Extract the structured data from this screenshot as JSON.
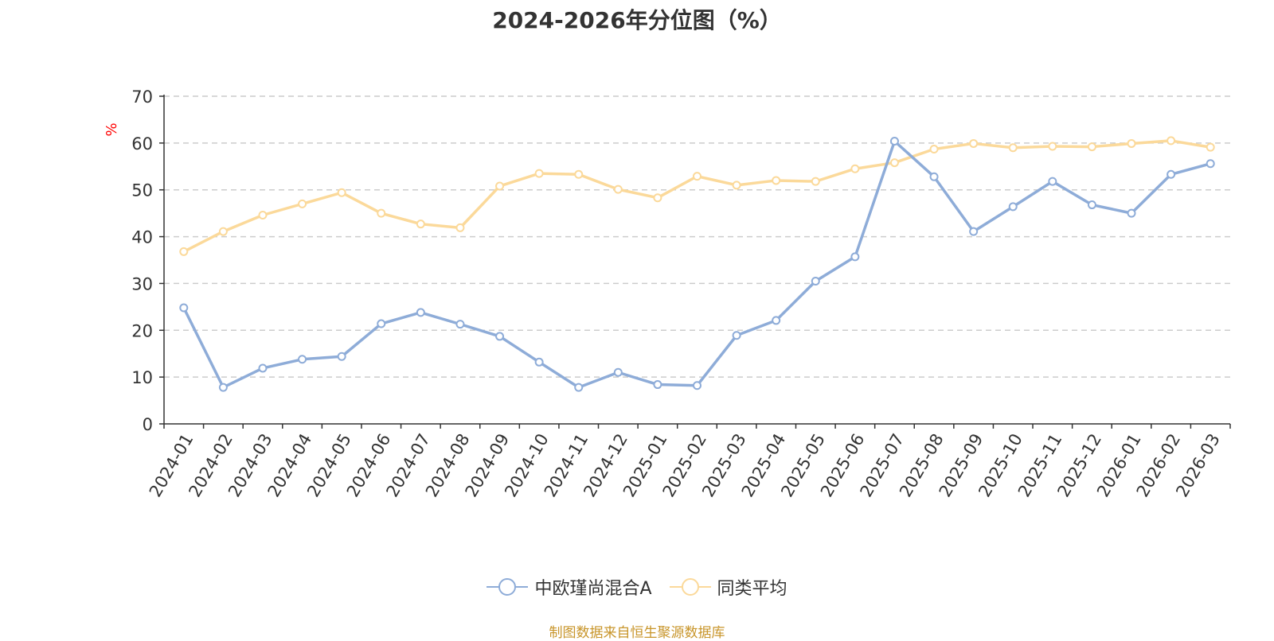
{
  "title": "2024-2026年分位图（%）",
  "source": "制图数据来自恒生聚源数据库",
  "colors": {
    "series_a": "#8eacd8",
    "series_b": "#fbd99a",
    "unit_label": "#ff0000",
    "source_text": "#c8952a",
    "grid": "#cccccc",
    "axis": "#333333"
  },
  "chart_data": {
    "type": "line",
    "x": [
      "2024-01",
      "2024-02",
      "2024-03",
      "2024-04",
      "2024-05",
      "2024-06",
      "2024-07",
      "2024-08",
      "2024-09",
      "2024-10",
      "2024-11",
      "2024-12",
      "2025-01",
      "2025-02",
      "2025-03",
      "2025-04",
      "2025-05",
      "2025-06",
      "2025-07",
      "2025-08",
      "2025-09",
      "2025-10",
      "2025-11",
      "2025-12",
      "2026-01",
      "2026-02",
      "2026-03"
    ],
    "ylabel": "%",
    "ylim": [
      0,
      70
    ],
    "yticks": [
      0,
      10,
      20,
      30,
      40,
      50,
      60,
      70
    ],
    "grid": "horizontal dashed",
    "legend_position": "bottom-center",
    "series": [
      {
        "name": "中欧瑾尚混合A",
        "values": [
          24.8,
          7.8,
          11.9,
          13.8,
          14.4,
          21.4,
          23.8,
          21.3,
          18.7,
          13.2,
          7.8,
          11.0,
          8.4,
          8.2,
          18.9,
          22.1,
          30.5,
          35.7,
          60.4,
          52.8,
          41.1,
          46.4,
          51.8,
          46.8,
          45.0,
          53.3,
          55.6
        ]
      },
      {
        "name": "同类平均",
        "values": [
          36.8,
          41.1,
          44.6,
          47.0,
          49.4,
          45.0,
          42.7,
          41.9,
          50.8,
          53.5,
          53.3,
          50.1,
          48.3,
          52.9,
          51.0,
          52.0,
          51.8,
          54.5,
          55.8,
          58.7,
          59.9,
          59.0,
          59.3,
          59.2,
          59.9,
          60.5,
          59.1
        ]
      }
    ]
  }
}
